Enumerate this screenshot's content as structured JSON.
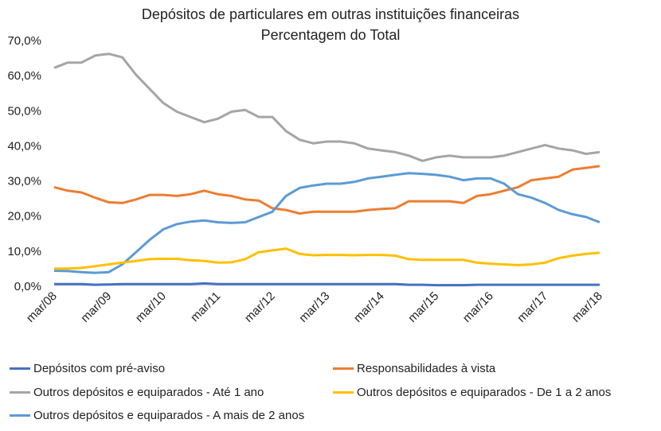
{
  "chart_data": {
    "type": "line",
    "title": "Depósitos de particulares em outras instituições financeiras",
    "subtitle": "Percentagem do Total",
    "xlabel": "",
    "ylabel": "",
    "ylim": [
      0,
      70
    ],
    "y_ticks": [
      "0,0%",
      "10,0%",
      "20,0%",
      "30,0%",
      "40,0%",
      "50,0%",
      "60,0%",
      "70,0%"
    ],
    "x_ticks": [
      "mar/08",
      "mar/09",
      "mar/10",
      "mar/11",
      "mar/12",
      "mar/13",
      "mar/14",
      "mar/15",
      "mar/16",
      "mar/17",
      "mar/18"
    ],
    "x_frequency": "quarterly",
    "grid": false,
    "legend_position": "bottom",
    "series": [
      {
        "name": "Depósitos com pré-aviso",
        "color": "#4472C4",
        "values": [
          0.4,
          0.4,
          0.4,
          0.2,
          0.3,
          0.4,
          0.4,
          0.4,
          0.4,
          0.4,
          0.4,
          0.6,
          0.4,
          0.4,
          0.4,
          0.4,
          0.4,
          0.4,
          0.4,
          0.4,
          0.4,
          0.4,
          0.4,
          0.4,
          0.4,
          0.4,
          0.2,
          0.2,
          0.1,
          0.1,
          0.1,
          0.2,
          0.2,
          0.2,
          0.2,
          0.2,
          0.2,
          0.2,
          0.2,
          0.2,
          0.2
        ]
      },
      {
        "name": "Responsabilidades à vista",
        "color": "#ED7D31",
        "values": [
          28,
          27,
          26.5,
          25,
          23.7,
          23.5,
          24.5,
          25.8,
          25.8,
          25.5,
          26,
          27,
          26,
          25.5,
          24.5,
          24.2,
          22,
          21.5,
          20.5,
          21,
          21,
          21,
          21,
          21.5,
          21.8,
          22,
          24,
          24,
          24,
          24,
          23.5,
          25.5,
          26,
          27,
          28,
          30,
          30.5,
          31,
          33,
          33.5,
          34
        ]
      },
      {
        "name": "Outros depósitos e equiparados - Até 1 ano",
        "color": "#A5A5A5",
        "values": [
          62,
          63.5,
          63.5,
          65.5,
          66,
          65,
          60,
          56,
          52,
          49.5,
          48,
          46.5,
          47.5,
          49.5,
          50,
          48,
          48,
          44,
          41.5,
          40.5,
          41,
          41,
          40.5,
          39,
          38.5,
          38,
          37,
          35.5,
          36.5,
          37,
          36.5,
          36.5,
          36.5,
          37,
          38,
          39,
          40,
          39,
          38.5,
          37.5,
          38
        ]
      },
      {
        "name": "Outros depósitos e equiparados - De 1 a 2 anos",
        "color": "#FFC000",
        "values": [
          4.8,
          4.8,
          5,
          5.5,
          6,
          6.5,
          7,
          7.5,
          7.6,
          7.6,
          7.2,
          7,
          6.5,
          6.6,
          7.5,
          9.5,
          10,
          10.5,
          9,
          8.6,
          8.7,
          8.7,
          8.6,
          8.7,
          8.7,
          8.5,
          7.5,
          7.3,
          7.3,
          7.3,
          7.3,
          6.5,
          6.2,
          6,
          5.8,
          6,
          6.5,
          7.8,
          8.5,
          9,
          9.3
        ]
      },
      {
        "name": "Outros depósitos e equiparados - A mais de 2 anos",
        "color": "#5B9BD5",
        "values": [
          4.2,
          4.1,
          3.8,
          3.6,
          3.8,
          6,
          9.5,
          13,
          16,
          17.5,
          18.2,
          18.5,
          18,
          17.8,
          18,
          19.5,
          21,
          25.5,
          27.8,
          28.5,
          29,
          29,
          29.5,
          30.5,
          31,
          31.5,
          32,
          31.8,
          31.5,
          31,
          30,
          30.5,
          30.5,
          29,
          26,
          25,
          23.5,
          21.5,
          20.3,
          19.5,
          18
        ]
      }
    ]
  }
}
